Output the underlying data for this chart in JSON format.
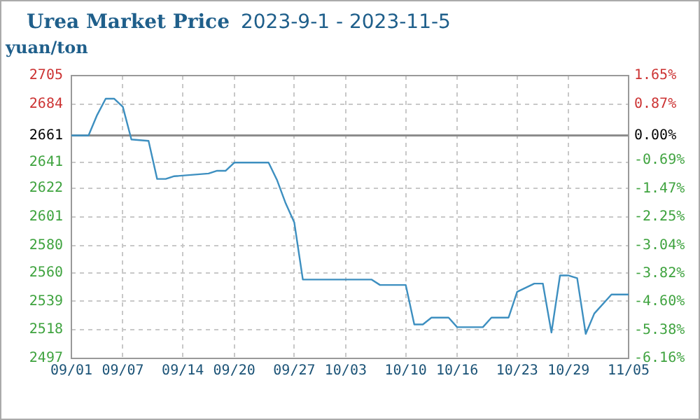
{
  "chart_data": {
    "type": "line",
    "title": "Urea Market Price",
    "subtitle": "2023-9-1 - 2023-11-5",
    "ylabel": "yuan/ton",
    "x": [
      "2023-09-01",
      "2023-09-03",
      "2023-09-04",
      "2023-09-05",
      "2023-09-06",
      "2023-09-07",
      "2023-09-08",
      "2023-09-10",
      "2023-09-11",
      "2023-09-12",
      "2023-09-13",
      "2023-09-17",
      "2023-09-18",
      "2023-09-19",
      "2023-09-20",
      "2023-09-24",
      "2023-09-25",
      "2023-09-26",
      "2023-09-27",
      "2023-09-28",
      "2023-10-06",
      "2023-10-07",
      "2023-10-10",
      "2023-10-11",
      "2023-10-12",
      "2023-10-13",
      "2023-10-15",
      "2023-10-16",
      "2023-10-19",
      "2023-10-20",
      "2023-10-22",
      "2023-10-23",
      "2023-10-25",
      "2023-10-26",
      "2023-10-27",
      "2023-10-28",
      "2023-10-29",
      "2023-10-30",
      "2023-10-31",
      "2023-11-01",
      "2023-11-03",
      "2023-11-05"
    ],
    "series": [
      {
        "color": "#3d8fc0",
        "values": [
          2661,
          2661,
          2676,
          2688,
          2688,
          2682,
          2658,
          2657,
          2629,
          2629,
          2631,
          2633,
          2635,
          2635,
          2641,
          2641,
          2628,
          2611,
          2597,
          2555,
          2555,
          2551,
          2551,
          2522,
          2522,
          2527,
          2527,
          2520,
          2520,
          2527,
          2527,
          2546,
          2552,
          2552,
          2516,
          2558,
          2558,
          2556,
          2515,
          2530,
          2544,
          2544
        ]
      }
    ],
    "xlim": [
      "2023-09-01",
      "2023-11-05"
    ],
    "xticks": [
      {
        "value": "2023-09-01",
        "label": "09/01"
      },
      {
        "value": "2023-09-07",
        "label": "09/07"
      },
      {
        "value": "2023-09-14",
        "label": "09/14"
      },
      {
        "value": "2023-09-20",
        "label": "09/20"
      },
      {
        "value": "2023-09-27",
        "label": "09/27"
      },
      {
        "value": "2023-10-03",
        "label": "10/03"
      },
      {
        "value": "2023-10-10",
        "label": "10/10"
      },
      {
        "value": "2023-10-16",
        "label": "10/16"
      },
      {
        "value": "2023-10-23",
        "label": "10/23"
      },
      {
        "value": "2023-10-29",
        "label": "10/29"
      },
      {
        "value": "2023-11-05",
        "label": "11/05"
      }
    ],
    "ylim": [
      2497,
      2705
    ],
    "yticks": [
      2497,
      2518,
      2539,
      2560,
      2580,
      2601,
      2622,
      2641,
      2661,
      2684,
      2705
    ],
    "y2lim": [
      -6.16,
      1.65
    ],
    "y2ticks": [
      {
        "value": -6.16,
        "label": "-6.16%"
      },
      {
        "value": -5.38,
        "label": "-5.38%"
      },
      {
        "value": -4.6,
        "label": "-4.60%"
      },
      {
        "value": -3.82,
        "label": "-3.82%"
      },
      {
        "value": -3.04,
        "label": "-3.04%"
      },
      {
        "value": -2.25,
        "label": "-2.25%"
      },
      {
        "value": -1.47,
        "label": "-1.47%"
      },
      {
        "value": -0.69,
        "label": "-0.69%"
      },
      {
        "value": 0,
        "label": "0.00%"
      },
      {
        "value": 0.87,
        "label": "0.87%"
      },
      {
        "value": 1.65,
        "label": "1.65%"
      }
    ],
    "ref_lines": [
      {
        "axis": "y",
        "value": 2661,
        "color": "#8c8c8c"
      }
    ],
    "grid": true,
    "legend": false,
    "marker": "none",
    "line_style": "solid"
  }
}
